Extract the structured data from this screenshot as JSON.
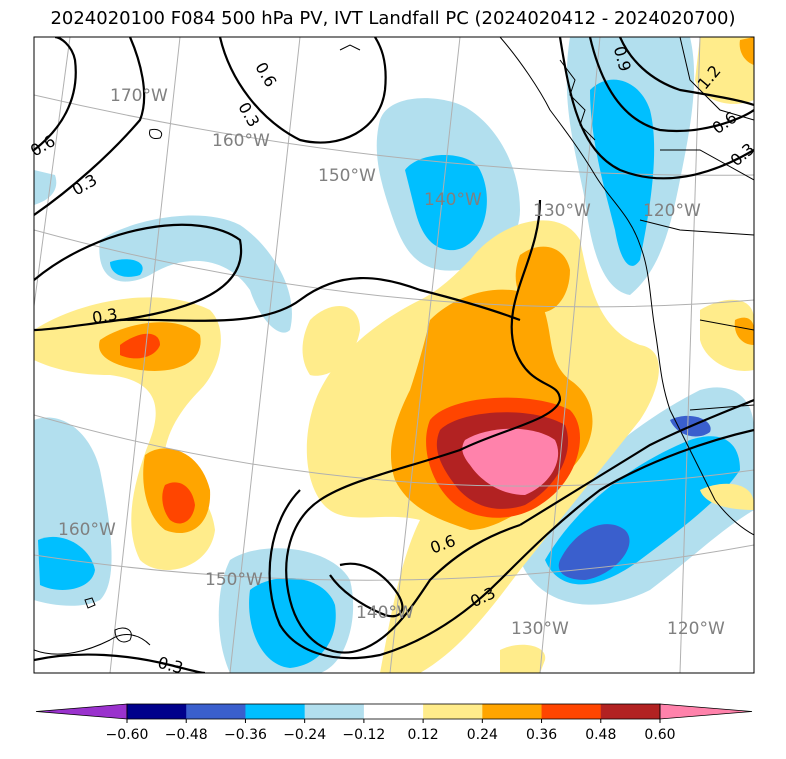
{
  "title": "2024020100 F084 500 hPa PV, IVT Landfall PC (2024020412 - 2024020700)",
  "map": {
    "longitude_labels_top": [
      "170°W",
      "160°W",
      "150°W",
      "140°W",
      "130°W",
      "120°W"
    ],
    "longitude_labels_bottom": [
      "160°W",
      "150°W",
      "140°W",
      "130°W",
      "120°W"
    ],
    "contour_labels": [
      "0.6",
      "0.3",
      "0.6",
      "0.3",
      "0.9",
      "1.2",
      "0.6",
      "0.3",
      "0.3",
      "0.6",
      "0.3",
      "0.3"
    ],
    "colors": {
      "coast": "#000000",
      "grid": "#b0b0b0",
      "contour": "#000000"
    }
  },
  "colorbar": {
    "tick_labels": [
      "−0.60",
      "−0.48",
      "−0.36",
      "−0.24",
      "−0.12",
      "0.12",
      "0.24",
      "0.36",
      "0.48",
      "0.60"
    ],
    "levels": [
      -0.6,
      -0.48,
      -0.36,
      -0.24,
      -0.12,
      0.12,
      0.24,
      0.36,
      0.48,
      0.6
    ],
    "colors": [
      "#9a32cd",
      "#00008b",
      "#3a5fcd",
      "#00bfff",
      "#b2dfee",
      "#ffffff",
      "#ffec8b",
      "#ffa500",
      "#ff4500",
      "#b22222",
      "#ff82ab"
    ]
  }
}
